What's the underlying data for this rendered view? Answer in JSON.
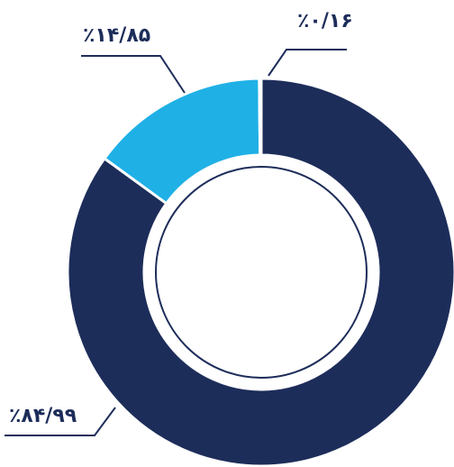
{
  "chart_data": {
    "type": "pie",
    "donut": true,
    "categories": [
      null,
      null,
      null
    ],
    "values": [
      84.99,
      14.85,
      0.16
    ],
    "value_labels": [
      "٪۸۴/۹۹",
      "٪۱۴/۸۵",
      "٪۰/۱۶"
    ],
    "colors": [
      "#1d2d5a",
      "#1fb0e6",
      "#c9d3e0"
    ]
  }
}
